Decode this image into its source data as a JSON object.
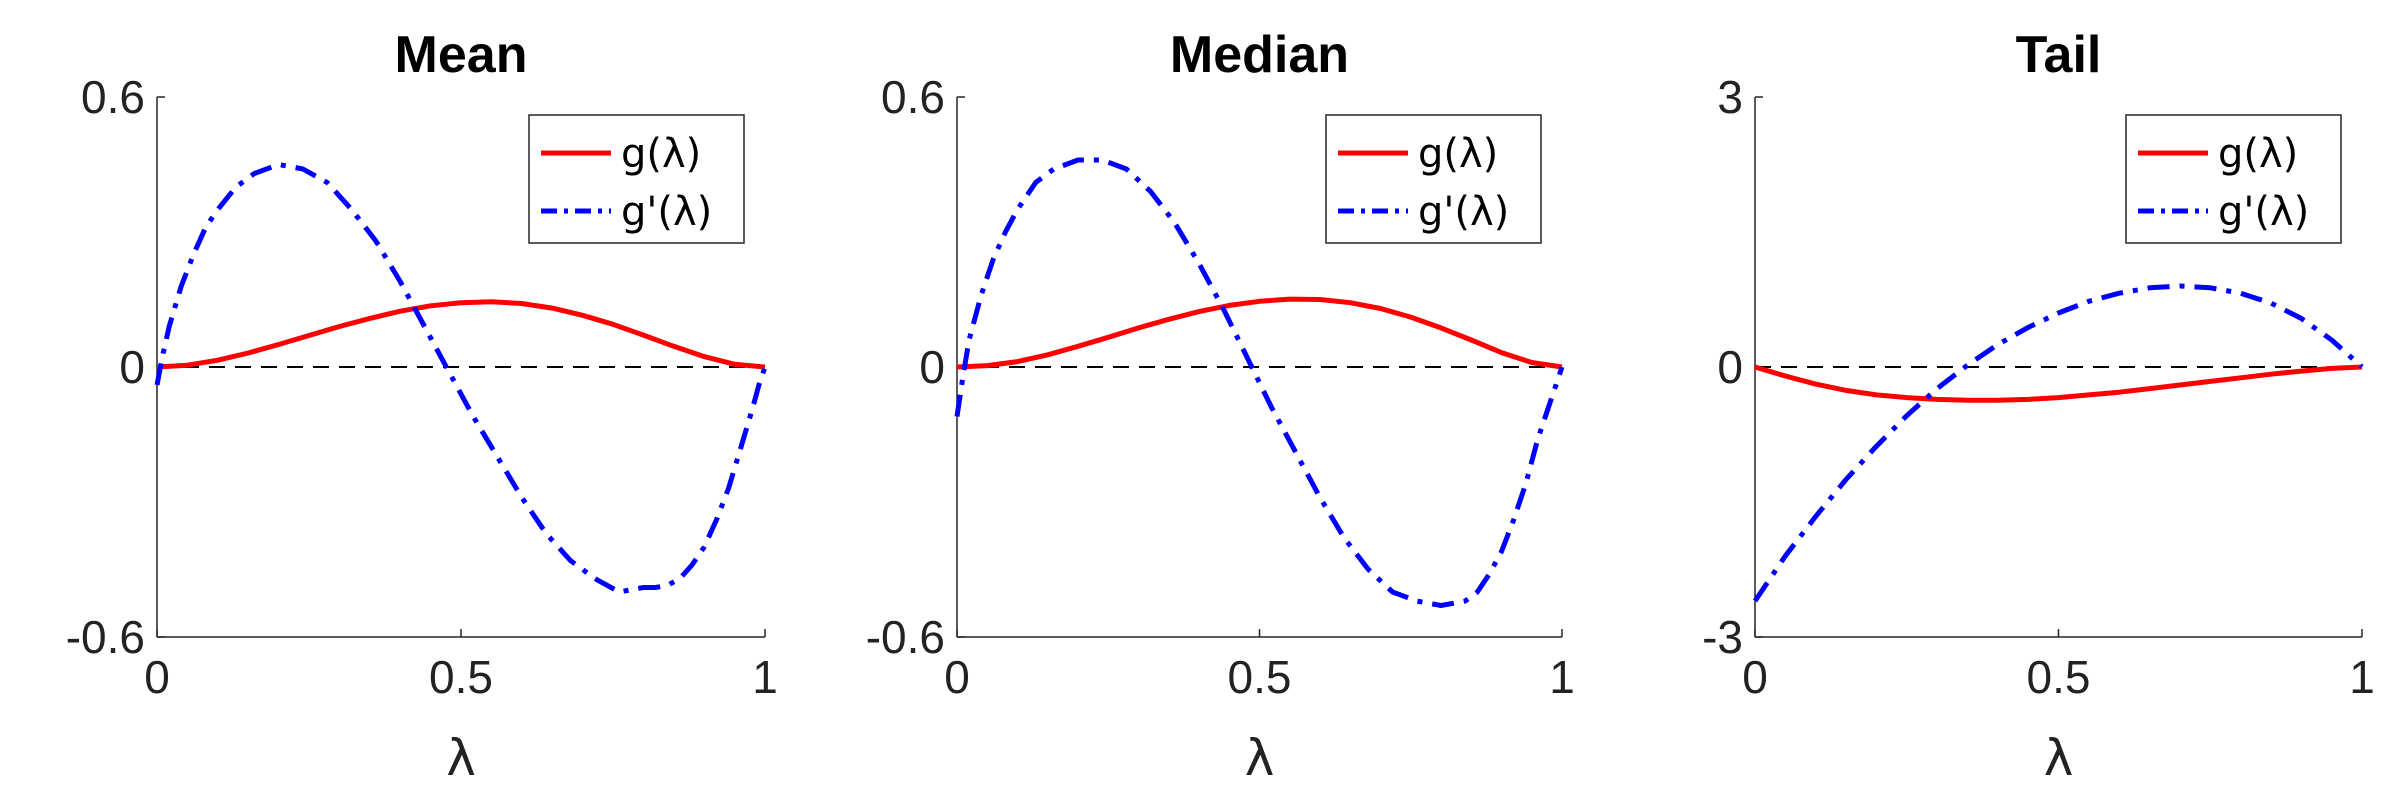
{
  "chart_data": [
    {
      "type": "line",
      "title": "Mean",
      "xlabel": "λ",
      "ylabel": "",
      "xlim": [
        0,
        1
      ],
      "ylim": [
        -0.6,
        0.6
      ],
      "xticks": [
        "0",
        "0.5",
        "1"
      ],
      "yticks": [
        "-0.6",
        "0",
        "0.6"
      ],
      "reference_line": {
        "y": 0,
        "style": "dashed",
        "color": "#000000"
      },
      "legend_position": "top-right",
      "grid": false,
      "series": [
        {
          "name": "g(λ)",
          "style": "solid",
          "color": "#ff0000",
          "x": [
            0,
            0.05,
            0.1,
            0.15,
            0.2,
            0.25,
            0.3,
            0.35,
            0.4,
            0.45,
            0.5,
            0.55,
            0.6,
            0.65,
            0.7,
            0.75,
            0.8,
            0.85,
            0.9,
            0.95,
            1
          ],
          "y": [
            0,
            0.004,
            0.015,
            0.031,
            0.05,
            0.07,
            0.09,
            0.108,
            0.124,
            0.136,
            0.143,
            0.145,
            0.141,
            0.131,
            0.115,
            0.095,
            0.071,
            0.046,
            0.023,
            0.006,
            0
          ]
        },
        {
          "name": "g'(λ)",
          "style": "dashdot",
          "color": "#0000ff",
          "x": [
            0,
            0.01,
            0.02,
            0.04,
            0.06,
            0.08,
            0.1,
            0.13,
            0.16,
            0.2,
            0.24,
            0.28,
            0.32,
            0.36,
            0.4,
            0.44,
            0.48,
            0.52,
            0.56,
            0.6,
            0.64,
            0.68,
            0.72,
            0.76,
            0.8,
            0.82,
            0.84,
            0.86,
            0.88,
            0.9,
            0.92,
            0.94,
            0.96,
            0.98,
            0.99,
            1
          ],
          "y": [
            -0.04,
            0.03,
            0.09,
            0.18,
            0.25,
            0.31,
            0.35,
            0.4,
            0.43,
            0.45,
            0.44,
            0.41,
            0.35,
            0.28,
            0.19,
            0.09,
            -0.01,
            -0.11,
            -0.2,
            -0.29,
            -0.37,
            -0.43,
            -0.47,
            -0.5,
            -0.49,
            -0.49,
            -0.485,
            -0.47,
            -0.44,
            -0.4,
            -0.34,
            -0.27,
            -0.18,
            -0.09,
            -0.04,
            0
          ]
        }
      ]
    },
    {
      "type": "line",
      "title": "Median",
      "xlabel": "λ",
      "ylabel": "",
      "xlim": [
        0,
        1
      ],
      "ylim": [
        -0.6,
        0.6
      ],
      "xticks": [
        "0",
        "0.5",
        "1"
      ],
      "yticks": [
        "-0.6",
        "0",
        "0.6"
      ],
      "reference_line": {
        "y": 0,
        "style": "dashed",
        "color": "#000000"
      },
      "legend_position": "top-right",
      "grid": false,
      "series": [
        {
          "name": "g(λ)",
          "style": "solid",
          "color": "#ff0000",
          "x": [
            0,
            0.05,
            0.1,
            0.15,
            0.2,
            0.25,
            0.3,
            0.35,
            0.4,
            0.45,
            0.5,
            0.55,
            0.6,
            0.65,
            0.7,
            0.75,
            0.8,
            0.85,
            0.9,
            0.95,
            1
          ],
          "y": [
            0,
            0.003,
            0.012,
            0.027,
            0.046,
            0.066,
            0.087,
            0.106,
            0.123,
            0.137,
            0.146,
            0.151,
            0.15,
            0.143,
            0.13,
            0.111,
            0.087,
            0.06,
            0.032,
            0.01,
            0
          ]
        },
        {
          "name": "g'(λ)",
          "style": "dashdot",
          "color": "#0000ff",
          "x": [
            0,
            0.01,
            0.02,
            0.04,
            0.06,
            0.08,
            0.1,
            0.13,
            0.16,
            0.2,
            0.24,
            0.28,
            0.32,
            0.36,
            0.4,
            0.44,
            0.48,
            0.52,
            0.56,
            0.6,
            0.64,
            0.68,
            0.72,
            0.76,
            0.8,
            0.82,
            0.84,
            0.86,
            0.88,
            0.9,
            0.92,
            0.94,
            0.96,
            0.98,
            0.99,
            1
          ],
          "y": [
            -0.11,
            -0.02,
            0.06,
            0.16,
            0.24,
            0.3,
            0.35,
            0.41,
            0.44,
            0.46,
            0.46,
            0.44,
            0.39,
            0.32,
            0.23,
            0.13,
            0.02,
            -0.09,
            -0.19,
            -0.29,
            -0.38,
            -0.45,
            -0.5,
            -0.52,
            -0.53,
            -0.525,
            -0.52,
            -0.5,
            -0.46,
            -0.41,
            -0.34,
            -0.26,
            -0.16,
            -0.08,
            -0.04,
            0
          ]
        }
      ]
    },
    {
      "type": "line",
      "title": "Tail",
      "xlabel": "λ",
      "ylabel": "",
      "xlim": [
        0,
        1
      ],
      "ylim": [
        -3,
        3
      ],
      "xticks": [
        "0",
        "0.5",
        "1"
      ],
      "yticks": [
        "-3",
        "0",
        "3"
      ],
      "reference_line": {
        "y": 0,
        "style": "dashed",
        "color": "#000000"
      },
      "legend_position": "top-right",
      "grid": false,
      "series": [
        {
          "name": "g(λ)",
          "style": "solid",
          "color": "#ff0000",
          "x": [
            0,
            0.05,
            0.1,
            0.15,
            0.2,
            0.25,
            0.3,
            0.35,
            0.4,
            0.45,
            0.5,
            0.55,
            0.6,
            0.65,
            0.7,
            0.75,
            0.8,
            0.85,
            0.9,
            0.95,
            1
          ],
          "y": [
            0,
            -0.1,
            -0.19,
            -0.26,
            -0.31,
            -0.34,
            -0.36,
            -0.37,
            -0.37,
            -0.36,
            -0.34,
            -0.31,
            -0.28,
            -0.24,
            -0.2,
            -0.16,
            -0.12,
            -0.08,
            -0.045,
            -0.015,
            0
          ]
        },
        {
          "name": "g'(λ)",
          "style": "dashdot",
          "color": "#0000ff",
          "x": [
            0,
            0.05,
            0.1,
            0.15,
            0.2,
            0.25,
            0.3,
            0.35,
            0.4,
            0.45,
            0.5,
            0.55,
            0.6,
            0.65,
            0.7,
            0.75,
            0.8,
            0.85,
            0.9,
            0.95,
            1
          ],
          "y": [
            -2.6,
            -2.1,
            -1.66,
            -1.25,
            -0.88,
            -0.54,
            -0.24,
            0.02,
            0.25,
            0.44,
            0.6,
            0.73,
            0.82,
            0.88,
            0.9,
            0.88,
            0.82,
            0.71,
            0.54,
            0.3,
            0
          ]
        }
      ]
    }
  ]
}
